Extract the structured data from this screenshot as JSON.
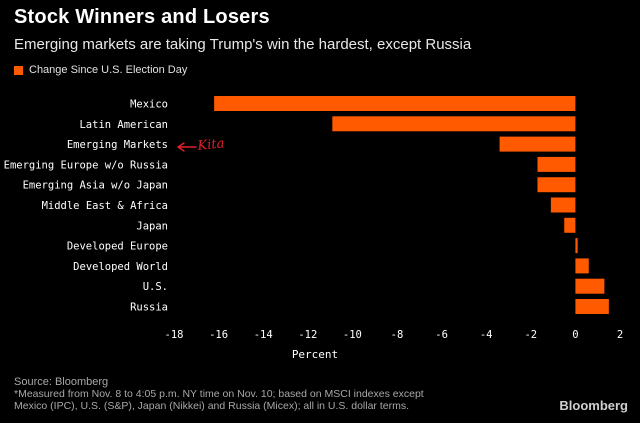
{
  "header": {
    "title": "Stock Winners and Losers",
    "subtitle": "Emerging markets are taking Trump's win the hardest, except Russia"
  },
  "legend": {
    "label": "Change Since U.S. Election Day"
  },
  "annotation": {
    "text": "Kita",
    "color": "#e0202a"
  },
  "colors": {
    "bar": "#ff5a00",
    "background": "#000000",
    "axis_text": "#ffffff"
  },
  "chart_data": {
    "type": "bar",
    "orientation": "horizontal",
    "title": "Stock Winners and Losers",
    "subtitle": "Emerging markets are taking Trump's win the hardest, except Russia",
    "xlabel": "Percent",
    "ylabel": "",
    "xlim": [
      -18,
      2
    ],
    "xticks": [
      -18,
      -16,
      -14,
      -12,
      -10,
      -8,
      -6,
      -4,
      -2,
      0,
      2
    ],
    "categories": [
      "Mexico",
      "Latin American",
      "Emerging Markets",
      "Emerging Europe w/o Russia",
      "Emerging Asia w/o Japan",
      "Middle East & Africa",
      "Japan",
      "Developed Europe",
      "Developed World",
      "U.S.",
      "Russia"
    ],
    "series": [
      {
        "name": "Change Since U.S. Election Day",
        "values": [
          -16.2,
          -10.9,
          -3.4,
          -1.7,
          -1.7,
          -1.1,
          -0.5,
          0.1,
          0.6,
          1.3,
          1.5
        ]
      }
    ],
    "legend_position": "top-left",
    "grid": false
  },
  "footer": {
    "source": "Source: Bloomberg",
    "footnote_line1": "*Measured from Nov. 8 to 4:05 p.m. NY time on Nov. 10; based on MSCI indexes except",
    "footnote_line2": "Mexico (IPC), U.S. (S&P), Japan (Nikkei) and Russia (Micex); all in U.S. dollar terms.",
    "brand": "Bloomberg"
  }
}
